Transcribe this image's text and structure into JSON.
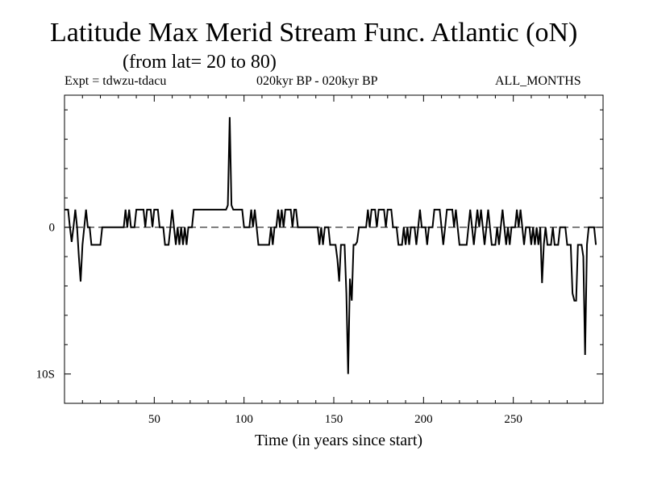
{
  "chart_data": {
    "type": "line",
    "title": "Latitude Max Merid Stream Func. Atlantic (oN)",
    "subtitle": "(from lat= 20 to 80)",
    "header_left": "Expt = tdwzu-tdacu",
    "header_center": "020kyr BP - 020kyr BP",
    "header_right": "ALL_MONTHS",
    "xlabel": "Time (in years since start)",
    "ylabel": "",
    "xlim": [
      0,
      300
    ],
    "ylim": [
      -12,
      9
    ],
    "y_axis_inverted_labels": true,
    "grid": false,
    "x_ticks": [
      50,
      100,
      150,
      200,
      250
    ],
    "x_tick_labels": [
      "50",
      "100",
      "150",
      "200",
      "250"
    ],
    "y_ticks": [
      0,
      -10
    ],
    "y_tick_labels": [
      "0",
      "10S"
    ],
    "reference_line": {
      "y": 0,
      "style": "dashed"
    },
    "series": [
      {
        "values": [
          [
            0,
            1.2
          ],
          [
            2,
            1.2
          ],
          [
            3,
            0
          ],
          [
            4,
            -1
          ],
          [
            5,
            0
          ],
          [
            6,
            1.2
          ],
          [
            7,
            0
          ],
          [
            8,
            -2
          ],
          [
            9,
            -3.7
          ],
          [
            10,
            -1.2
          ],
          [
            11,
            0
          ],
          [
            12,
            1.2
          ],
          [
            13,
            0
          ],
          [
            14,
            0
          ],
          [
            15,
            -1.2
          ],
          [
            20,
            -1.2
          ],
          [
            21,
            0
          ],
          [
            33,
            0
          ],
          [
            34,
            1.2
          ],
          [
            35,
            0
          ],
          [
            36,
            1.2
          ],
          [
            37,
            0
          ],
          [
            39,
            0
          ],
          [
            40,
            1.2
          ],
          [
            44,
            1.2
          ],
          [
            45,
            0
          ],
          [
            46,
            1.2
          ],
          [
            48,
            1.2
          ],
          [
            49,
            0
          ],
          [
            50,
            1.2
          ],
          [
            52,
            1.2
          ],
          [
            53,
            0
          ],
          [
            55,
            0
          ],
          [
            56,
            -1.2
          ],
          [
            58,
            -1.2
          ],
          [
            59,
            0
          ],
          [
            60,
            1.2
          ],
          [
            61,
            0
          ],
          [
            62,
            -1.2
          ],
          [
            63,
            0
          ],
          [
            64,
            -1.2
          ],
          [
            65,
            0
          ],
          [
            66,
            -1.2
          ],
          [
            67,
            0
          ],
          [
            68,
            -1.2
          ],
          [
            69,
            0
          ],
          [
            71,
            0
          ],
          [
            72,
            1.2
          ],
          [
            75,
            1.2
          ],
          [
            80,
            1.2
          ],
          [
            81,
            1.2
          ],
          [
            84,
            1.2
          ],
          [
            85,
            1.2
          ],
          [
            86,
            1.2
          ],
          [
            88,
            1.2
          ],
          [
            90,
            1.2
          ],
          [
            91,
            1.5
          ],
          [
            92,
            7.5
          ],
          [
            93,
            1.5
          ],
          [
            94,
            1.2
          ],
          [
            99,
            1.2
          ],
          [
            100,
            0
          ],
          [
            103,
            0
          ],
          [
            104,
            1.2
          ],
          [
            105,
            0
          ],
          [
            106,
            1.2
          ],
          [
            107,
            0
          ],
          [
            108,
            -1.2
          ],
          [
            114,
            -1.2
          ],
          [
            115,
            0
          ],
          [
            116,
            -1.2
          ],
          [
            117,
            0
          ],
          [
            118,
            0
          ],
          [
            119,
            1.2
          ],
          [
            120,
            0
          ],
          [
            121,
            1.2
          ],
          [
            122,
            0
          ],
          [
            123,
            1.2
          ],
          [
            126,
            1.2
          ],
          [
            127,
            0
          ],
          [
            128,
            1.2
          ],
          [
            129,
            1.2
          ],
          [
            130,
            0
          ],
          [
            141,
            0
          ],
          [
            142,
            -1.2
          ],
          [
            143,
            0
          ],
          [
            144,
            -1.2
          ],
          [
            145,
            0
          ],
          [
            147,
            0
          ],
          [
            148,
            -1.2
          ],
          [
            151,
            -1.2
          ],
          [
            152,
            -2.2
          ],
          [
            153,
            -3.7
          ],
          [
            154,
            -1.2
          ],
          [
            156,
            -1.2
          ],
          [
            157,
            -4.5
          ],
          [
            158,
            -10
          ],
          [
            159,
            -3.5
          ],
          [
            160,
            -5
          ],
          [
            161,
            -1.2
          ],
          [
            162,
            -1.2
          ],
          [
            163,
            -1
          ],
          [
            164,
            0
          ],
          [
            168,
            0
          ],
          [
            169,
            1.2
          ],
          [
            170,
            0
          ],
          [
            171,
            1.2
          ],
          [
            173,
            1.2
          ],
          [
            174,
            0
          ],
          [
            175,
            1.2
          ],
          [
            178,
            1.2
          ],
          [
            179,
            0
          ],
          [
            180,
            1.2
          ],
          [
            182,
            1.2
          ],
          [
            183,
            0
          ],
          [
            185,
            0
          ],
          [
            186,
            -1.2
          ],
          [
            188,
            -1.2
          ],
          [
            189,
            0
          ],
          [
            190,
            -1.2
          ],
          [
            191,
            0
          ],
          [
            192,
            -1.2
          ],
          [
            193,
            0
          ],
          [
            195,
            0
          ],
          [
            196,
            -1.2
          ],
          [
            197,
            0
          ],
          [
            198,
            1.2
          ],
          [
            199,
            0
          ],
          [
            201,
            0
          ],
          [
            202,
            -1.2
          ],
          [
            203,
            0
          ],
          [
            205,
            0
          ],
          [
            206,
            1.2
          ],
          [
            209,
            1.2
          ],
          [
            210,
            0
          ],
          [
            211,
            -1.2
          ],
          [
            212,
            0
          ],
          [
            213,
            1.2
          ],
          [
            216,
            1.2
          ],
          [
            217,
            0
          ],
          [
            218,
            1.2
          ],
          [
            219,
            0
          ],
          [
            220,
            -1.2
          ],
          [
            224,
            -1.2
          ],
          [
            225,
            0
          ],
          [
            226,
            1.2
          ],
          [
            227,
            0
          ],
          [
            228,
            -1.2
          ],
          [
            229,
            0
          ],
          [
            230,
            1.2
          ],
          [
            231,
            0
          ],
          [
            232,
            1.2
          ],
          [
            233,
            0
          ],
          [
            234,
            -1.2
          ],
          [
            235,
            0
          ],
          [
            236,
            1.2
          ],
          [
            237,
            0
          ],
          [
            238,
            -1.2
          ],
          [
            240,
            -1.2
          ],
          [
            241,
            0
          ],
          [
            242,
            -1.2
          ],
          [
            243,
            0
          ],
          [
            244,
            1.2
          ],
          [
            245,
            0
          ],
          [
            246,
            -1.2
          ],
          [
            247,
            0
          ],
          [
            248,
            -1.2
          ],
          [
            249,
            0
          ],
          [
            251,
            0
          ],
          [
            252,
            1.2
          ],
          [
            253,
            0
          ],
          [
            254,
            1.2
          ],
          [
            255,
            0
          ],
          [
            256,
            -1.2
          ],
          [
            257,
            0
          ],
          [
            259,
            0
          ],
          [
            260,
            -1.2
          ],
          [
            261,
            0
          ],
          [
            262,
            -1.2
          ],
          [
            263,
            0
          ],
          [
            264,
            -1.2
          ],
          [
            265,
            0
          ],
          [
            266,
            -3.8
          ],
          [
            267,
            -1.2
          ],
          [
            268,
            0
          ],
          [
            269,
            -1.2
          ],
          [
            271,
            -1.2
          ],
          [
            272,
            0
          ],
          [
            273,
            -1.2
          ],
          [
            275,
            -1.2
          ],
          [
            276,
            0
          ],
          [
            279,
            0
          ],
          [
            280,
            -1.2
          ],
          [
            282,
            -1.2
          ],
          [
            283,
            -4.5
          ],
          [
            284,
            -5
          ],
          [
            285,
            -5
          ],
          [
            286,
            -1.2
          ],
          [
            288,
            -1.2
          ],
          [
            289,
            -2
          ],
          [
            290,
            -8.7
          ],
          [
            291,
            -1.2
          ],
          [
            292,
            0
          ],
          [
            295,
            0
          ],
          [
            296,
            -1.2
          ]
        ]
      }
    ]
  }
}
